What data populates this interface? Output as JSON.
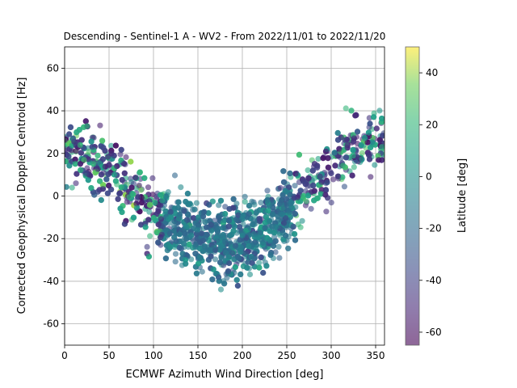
{
  "chart_data": {
    "type": "scatter",
    "title": "Descending - Sentinel-1 A - WV2 - From 2022/11/01 to 2022/11/20",
    "xlabel": "ECMWF Azimuth Wind Direction [deg]",
    "ylabel": "Corrected Geophysical Doppler Centroid [Hz]",
    "xlim": [
      0,
      360
    ],
    "ylim": [
      -70,
      70
    ],
    "xticks": [
      0,
      50,
      100,
      150,
      200,
      250,
      300,
      350
    ],
    "yticks": [
      -60,
      -40,
      -20,
      0,
      20,
      40,
      60
    ],
    "grid": true,
    "colorbar": {
      "label": "Latitude [deg]",
      "range": [
        -65,
        50
      ],
      "ticks": [
        -60,
        -40,
        -20,
        0,
        20,
        40
      ],
      "colormap": "viridis"
    },
    "point_alpha": 0.6,
    "points_description_trend": [
      {
        "x": 0,
        "y": 25
      },
      {
        "x": 50,
        "y": 12
      },
      {
        "x": 100,
        "y": -8
      },
      {
        "x": 150,
        "y": -20
      },
      {
        "x": 190,
        "y": -22
      },
      {
        "x": 230,
        "y": -15
      },
      {
        "x": 270,
        "y": 2
      },
      {
        "x": 320,
        "y": 22
      },
      {
        "x": 360,
        "y": 28
      }
    ]
  }
}
